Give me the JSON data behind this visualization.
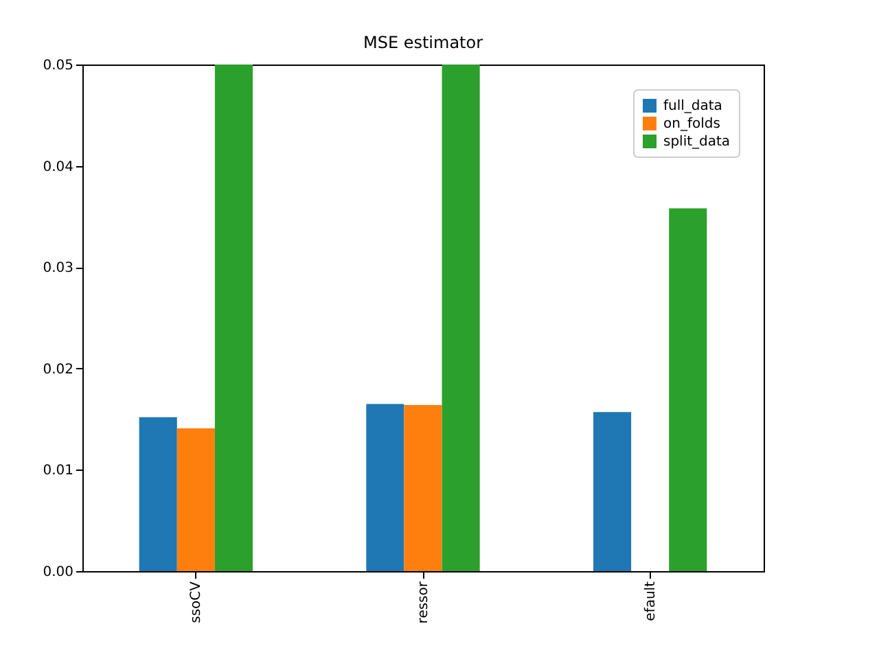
{
  "chart_data": {
    "type": "bar",
    "title": "MSE estimator",
    "categories": [
      "ssoCV",
      "ressor",
      "efault"
    ],
    "series": [
      {
        "name": "full_data",
        "color": "#1f77b4",
        "values": [
          0.0152,
          0.0165,
          0.0157
        ]
      },
      {
        "name": "on_folds",
        "color": "#ff7f0e",
        "values": [
          0.0141,
          0.0164,
          null
        ]
      },
      {
        "name": "split_data",
        "color": "#2ca02c",
        "values": [
          0.05,
          0.05,
          0.0358
        ]
      }
    ],
    "ylim": [
      0,
      0.05
    ],
    "yticks": [
      {
        "value": 0,
        "label": "0.00"
      },
      0.01,
      0.02,
      0.03,
      0.04,
      0.05
    ],
    "grid": false,
    "legend": "top right"
  }
}
